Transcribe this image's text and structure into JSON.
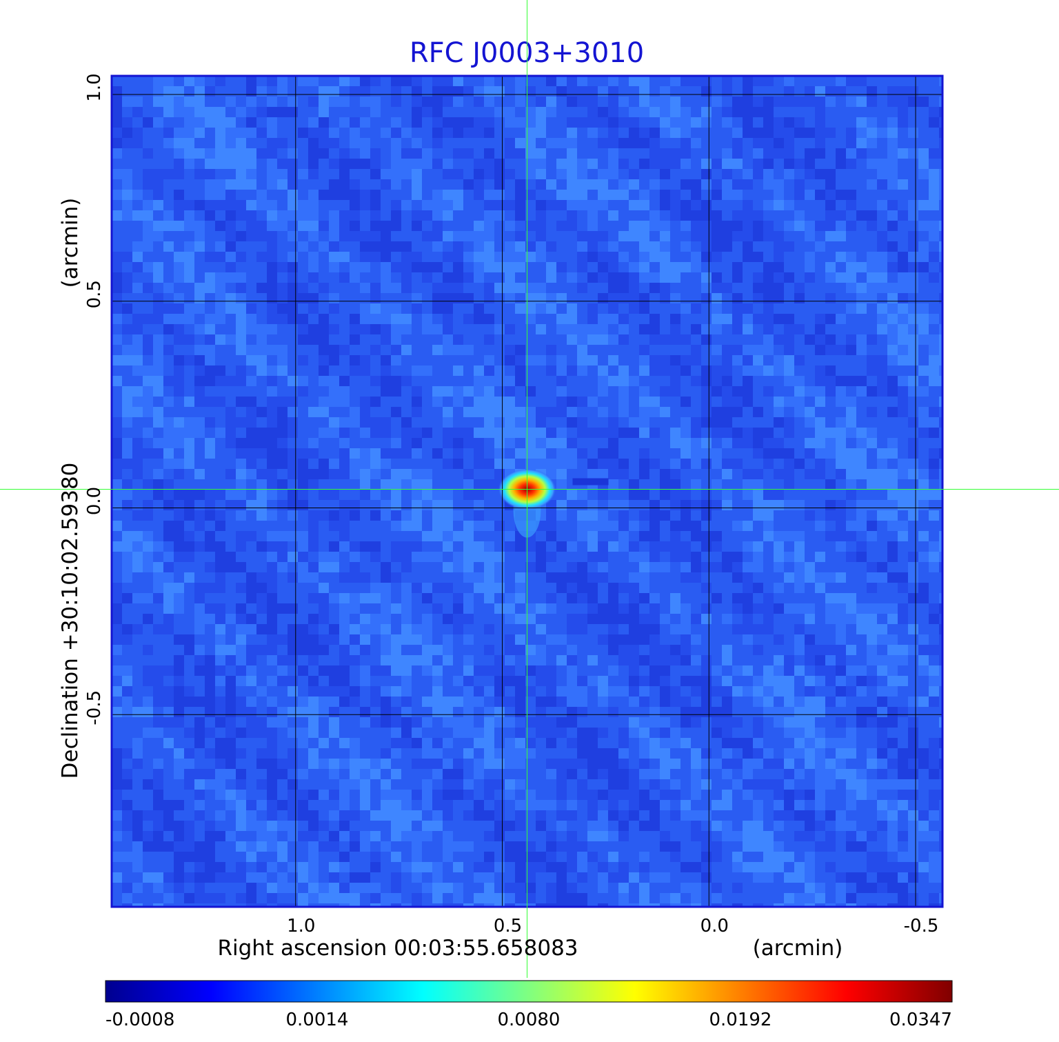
{
  "chart_data": {
    "type": "heatmap",
    "title": "RFC J0003+3010",
    "xlabel": "Right ascension  00:03:55.658083",
    "xunit": "(arcmin)",
    "ylabel": "Declination  +30:10:02.59380",
    "yunit": "(arcmin)",
    "x_ticks": [
      "1.0",
      "0.5",
      "0.0",
      "-0.5"
    ],
    "y_ticks": [
      "1.0",
      "0.5",
      "0.0",
      "-0.5"
    ],
    "xlim": [
      1.445,
      -0.565
    ],
    "ylim": [
      -0.965,
      1.045
    ],
    "x_reversed": true,
    "grid": true,
    "crosshair": {
      "x": 0.44,
      "y": 0.045
    },
    "source": {
      "x": 0.44,
      "y": 0.045,
      "peak": 0.0347
    },
    "colorbar": {
      "ticks": [
        "-0.0008",
        "0.0014",
        "0.0080",
        "0.0192",
        "0.0347"
      ],
      "colormap": "jet"
    }
  },
  "colors": {
    "title": "#1414d2",
    "frame": "#1414d2",
    "grid": "#000000",
    "crosshair": "#33ff33",
    "background_map": "#2a5cf2"
  }
}
